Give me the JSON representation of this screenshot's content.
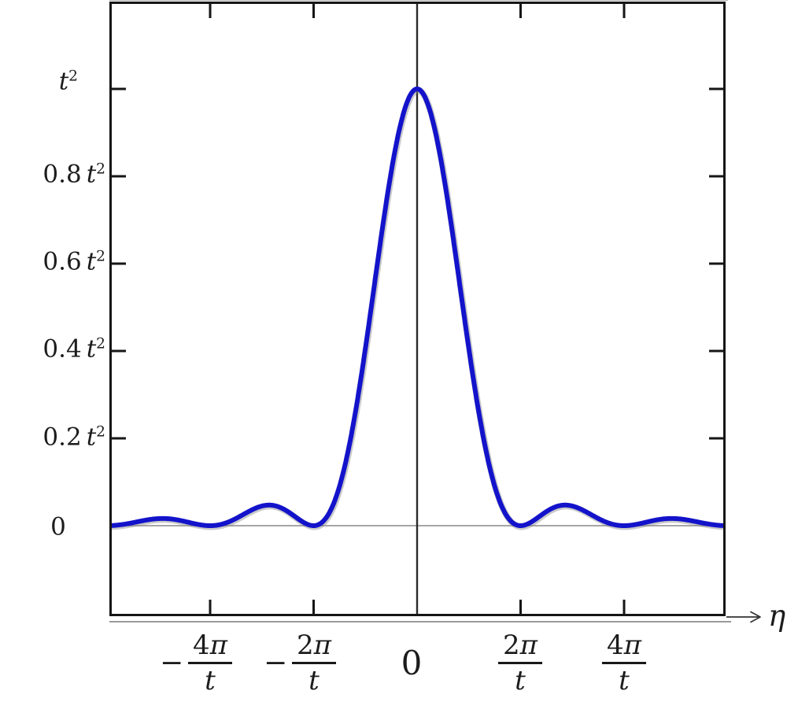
{
  "figure": {
    "background": "#ffffff",
    "curve_color": "#1313cb",
    "curve_fringe_color": "#8a8a8a",
    "axis_color": "#161616",
    "center_line_color": "#2a2a2a",
    "zero_line_color": "#9a9a9a"
  },
  "chart_data": {
    "type": "line",
    "title": "",
    "formula": "y(η) = t² · sinc²(η t / 2) = t² · ( sin(ηt/2) / (ηt/2) )²",
    "xlabel": "η",
    "ylabel": "t²",
    "x_units": "multiples of 2π/t",
    "x_domain_in_2pi_over_t": [
      -2.973,
      2.981
    ],
    "ylim_in_t2": [
      0,
      1
    ],
    "x_tick_values_in_2pi_over_t": [
      -2,
      -1,
      0,
      1,
      2
    ],
    "x_tick_labels": [
      "−4π/t",
      "−2π/t",
      "0",
      "2π/t",
      "4π/t"
    ],
    "y_tick_values_in_t2": [
      1,
      0.8,
      0.6,
      0.4,
      0.2,
      0
    ],
    "y_tick_labels": [
      "t²",
      "0.8 t²",
      "0.6 t²",
      "0.4 t²",
      "0.2 t²",
      "0"
    ],
    "key_points_in_units": [
      {
        "x": -2.459,
        "y": 0.0165
      },
      {
        "x": -2,
        "y": 0
      },
      {
        "x": -1.4303,
        "y": 0.0472
      },
      {
        "x": -1,
        "y": 0
      },
      {
        "x": 0,
        "y": 1
      },
      {
        "x": 1,
        "y": 0
      },
      {
        "x": 1.4303,
        "y": 0.0472
      },
      {
        "x": 2,
        "y": 0
      },
      {
        "x": 2.459,
        "y": 0.0165
      }
    ],
    "grid": false,
    "legend": false
  },
  "labels": {
    "y_ticks": [
      {
        "coef": "",
        "sym": "t",
        "exp": "2"
      },
      {
        "coef": "0.8",
        "sym": "t",
        "exp": "2"
      },
      {
        "coef": "0.6",
        "sym": "t",
        "exp": "2"
      },
      {
        "coef": "0.4",
        "sym": "t",
        "exp": "2"
      },
      {
        "coef": "0.2",
        "sym": "t",
        "exp": "2"
      },
      {
        "coef": "0",
        "sym": "",
        "exp": ""
      }
    ],
    "x_ticks": [
      {
        "sign": "−",
        "num_coef": "4",
        "num_pi": "π",
        "den": "t"
      },
      {
        "sign": "−",
        "num_coef": "2",
        "num_pi": "π",
        "den": "t"
      },
      {
        "plain": "0"
      },
      {
        "sign": "",
        "num_coef": "2",
        "num_pi": "π",
        "den": "t"
      },
      {
        "sign": "",
        "num_coef": "4",
        "num_pi": "π",
        "den": "t"
      }
    ],
    "x_axis_symbol": "η"
  }
}
